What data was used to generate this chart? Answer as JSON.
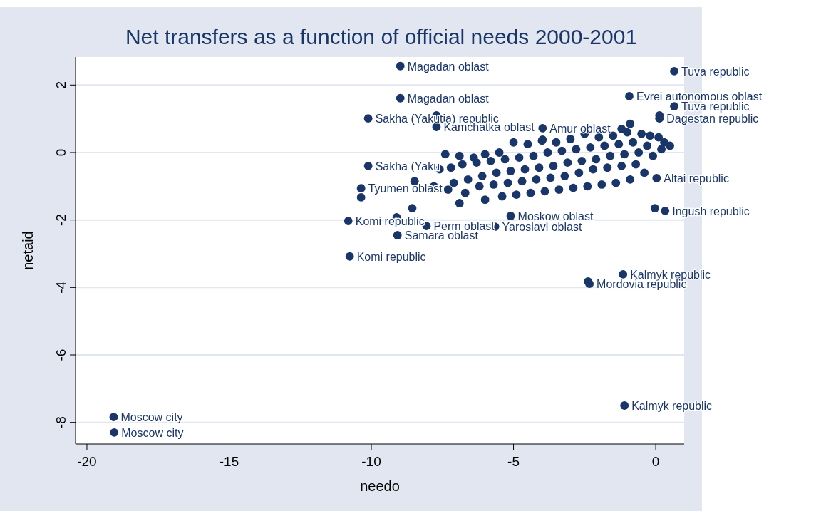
{
  "chart_data": {
    "type": "scatter",
    "title": "Net transfers as a function of official needs 2000-2001",
    "xlabel": "needo",
    "ylabel": "netaid",
    "xlim": [
      -20.4,
      1
    ],
    "ylim": [
      -8.64,
      2.83
    ],
    "xticks": [
      -20,
      -15,
      -10,
      -5,
      0
    ],
    "yticks": [
      -8,
      -6,
      -4,
      -2,
      0,
      2
    ],
    "grid": "y",
    "marker": "circle",
    "series": [
      {
        "color": "#1a3668",
        "x": [
          -8.98,
          -8.98,
          0.65,
          0.65,
          -0.93,
          -10.11,
          -7.71,
          -7.71,
          -10.11,
          -10.36,
          -10.36,
          -10.81,
          -10.76,
          -9.08,
          -9.11,
          -8.06,
          -5.65,
          -5.1,
          -0.03,
          0.03,
          0.33,
          -1.15,
          -1.1,
          -2.38,
          -2.33,
          -19.06,
          -19.04,
          0.13,
          0.13,
          -3.98,
          -8.56,
          -8.48,
          -0.9,
          -3.98,
          -5.0,
          -4.5,
          -4.0,
          -3.5,
          -3.0,
          -2.5,
          -2.0,
          -1.5,
          -1.2,
          -1.0,
          -0.5,
          -0.2,
          0.1,
          0.3,
          0.5,
          -7.4,
          -6.9,
          -6.4,
          -6.0,
          -5.5,
          -7.6,
          -7.2,
          -6.8,
          -6.3,
          -5.8,
          -5.3,
          -4.8,
          -4.3,
          -3.8,
          -3.3,
          -2.8,
          -2.3,
          -1.8,
          -1.3,
          -0.8,
          -0.3,
          0.2,
          -7.1,
          -6.6,
          -6.1,
          -5.6,
          -5.1,
          -4.6,
          -4.1,
          -3.6,
          -3.1,
          -2.6,
          -2.1,
          -1.6,
          -1.1,
          -0.6,
          -0.1,
          -7.8,
          -7.3,
          -6.7,
          -6.2,
          -5.7,
          -5.2,
          -4.7,
          -4.2,
          -3.7,
          -3.2,
          -2.7,
          -2.2,
          -1.7,
          -1.2,
          -0.7,
          -6.9,
          -6.0,
          -5.4,
          -4.9,
          -4.4,
          -3.9,
          -3.4,
          -2.9,
          -2.4,
          -1.9,
          -1.4,
          -0.9,
          -0.4
        ],
        "values": [
          2.56,
          1.61,
          2.41,
          1.37,
          1.67,
          1.01,
          1.1,
          0.76,
          -0.4,
          -1.06,
          -1.33,
          -2.03,
          -3.08,
          -2.45,
          -1.92,
          -2.18,
          -2.2,
          -1.88,
          -1.65,
          -0.76,
          -1.73,
          -3.61,
          -7.5,
          -3.82,
          -3.89,
          -7.84,
          -8.3,
          1.1,
          1.01,
          0.72,
          -1.65,
          -0.85,
          0.85,
          0.38,
          0.3,
          0.25,
          0.35,
          0.3,
          0.4,
          0.55,
          0.45,
          0.5,
          0.7,
          0.6,
          0.55,
          0.5,
          0.45,
          0.3,
          0.2,
          -0.05,
          -0.1,
          -0.15,
          -0.05,
          0.0,
          -0.5,
          -0.45,
          -0.35,
          -0.3,
          -0.25,
          -0.2,
          -0.15,
          -0.1,
          0.0,
          0.05,
          0.1,
          0.15,
          0.2,
          0.25,
          0.3,
          0.2,
          0.1,
          -0.9,
          -0.8,
          -0.7,
          -0.6,
          -0.55,
          -0.5,
          -0.45,
          -0.4,
          -0.3,
          -0.25,
          -0.2,
          -0.1,
          -0.05,
          0.0,
          -0.1,
          -1.0,
          -1.1,
          -1.2,
          -1.0,
          -0.95,
          -0.9,
          -0.85,
          -0.8,
          -0.75,
          -0.7,
          -0.6,
          -0.5,
          -0.45,
          -0.4,
          -0.35,
          -1.5,
          -1.4,
          -1.3,
          -1.25,
          -1.2,
          -1.15,
          -1.1,
          -1.05,
          -1.0,
          -0.95,
          -0.9,
          -0.8,
          -0.6
        ]
      }
    ],
    "annotations": [
      {
        "text": "Magadan oblast",
        "x": -8.98,
        "y": 2.56
      },
      {
        "text": "Magadan oblast",
        "x": -8.98,
        "y": 1.61
      },
      {
        "text": "Tuva republic",
        "x": 0.65,
        "y": 2.41
      },
      {
        "text": "Tuva republic",
        "x": 0.65,
        "y": 1.37
      },
      {
        "text": "Evrei autonomous oblast",
        "x": -0.93,
        "y": 1.67
      },
      {
        "text": "Sakha (Yakutia) republic",
        "x": -10.11,
        "y": 1.01
      },
      {
        "text": "Kamchatka oblast",
        "x": -7.71,
        "y": 0.76
      },
      {
        "text": "Sakha (Yaku",
        "x": -10.11,
        "y": -0.4
      },
      {
        "text": "Tyumen oblast",
        "x": -10.36,
        "y": -1.06
      },
      {
        "text": "Komi republic",
        "x": -10.81,
        "y": -2.03
      },
      {
        "text": "Komi republic",
        "x": -10.76,
        "y": -3.08
      },
      {
        "text": "Samara oblast",
        "x": -9.08,
        "y": -2.45
      },
      {
        "text": "Perm oblast",
        "x": -8.06,
        "y": -2.18
      },
      {
        "text": "Yaroslavl oblast",
        "x": -5.65,
        "y": -2.2
      },
      {
        "text": "Moskow oblast",
        "x": -5.1,
        "y": -1.88
      },
      {
        "text": "Altai republic",
        "x": 0.03,
        "y": -0.76
      },
      {
        "text": "Ingush republic",
        "x": 0.33,
        "y": -1.73
      },
      {
        "text": "Kalmyk republic",
        "x": -1.15,
        "y": -3.61
      },
      {
        "text": "Kalmyk republic",
        "x": -1.1,
        "y": -7.5
      },
      {
        "text": "Mordovia republic",
        "x": -2.33,
        "y": -3.89
      },
      {
        "text": "Moscow city",
        "x": -19.06,
        "y": -7.84
      },
      {
        "text": "Moscow city",
        "x": -19.04,
        "y": -8.3
      },
      {
        "text": "Dagestan republic",
        "x": 0.13,
        "y": 1.01
      },
      {
        "text": "Amur oblast",
        "x": -3.98,
        "y": 0.72
      }
    ]
  }
}
